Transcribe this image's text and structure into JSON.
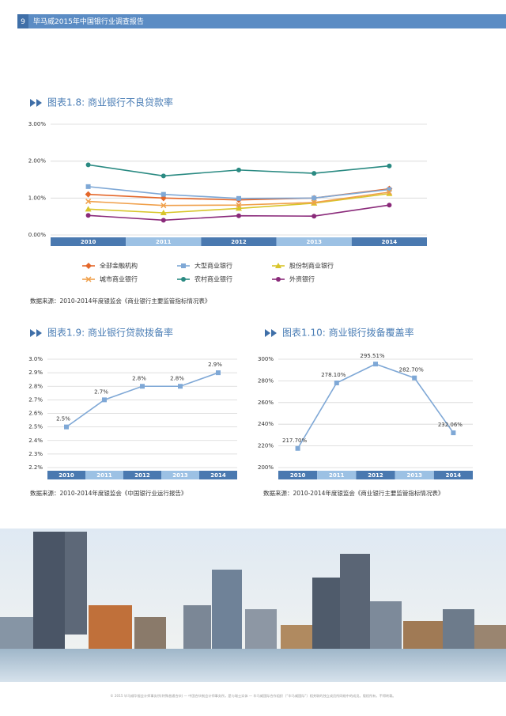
{
  "header": {
    "page_number": "9",
    "title": "毕马威2015年中国银行业调查报告"
  },
  "chart_data": [
    {
      "type": "line",
      "title": "图表1.8: 商业银行不良贷款率",
      "categories": [
        "2010",
        "2011",
        "2012",
        "2013",
        "2014"
      ],
      "ylim": [
        0,
        3
      ],
      "yticks": [
        {
          "value": 0,
          "label": "0.00%"
        },
        {
          "value": 1,
          "label": "1.00%"
        },
        {
          "value": 2,
          "label": "2.00%"
        },
        {
          "value": 3,
          "label": "3.00%"
        }
      ],
      "grid": true,
      "legend": "bottom",
      "series": [
        {
          "name": "全部金融机构",
          "color": "#e4672a",
          "marker": "diamond",
          "values": [
            1.1,
            1.0,
            0.95,
            1.0,
            1.25
          ]
        },
        {
          "name": "大型商业银行",
          "color": "#7fa8d6",
          "marker": "square",
          "values": [
            1.31,
            1.1,
            0.99,
            1.0,
            1.23
          ]
        },
        {
          "name": "股份制商业银行",
          "color": "#d8c52a",
          "marker": "triangle",
          "values": [
            0.7,
            0.6,
            0.72,
            0.86,
            1.12
          ]
        },
        {
          "name": "城市商业银行",
          "color": "#f0a04b",
          "marker": "cross",
          "values": [
            0.91,
            0.8,
            0.81,
            0.88,
            1.16
          ]
        },
        {
          "name": "农村商业银行",
          "color": "#2a8a82",
          "marker": "circle",
          "values": [
            1.9,
            1.6,
            1.76,
            1.67,
            1.87
          ]
        },
        {
          "name": "外资银行",
          "color": "#8a2a7a",
          "marker": "circle",
          "values": [
            0.53,
            0.4,
            0.52,
            0.51,
            0.81
          ]
        }
      ],
      "source": "数据来源：2010-2014年度银监会《商业银行主要监管指标情况表》"
    },
    {
      "type": "line",
      "title": "图表1.9: 商业银行贷款拨备率",
      "categories": [
        "2010",
        "2011",
        "2012",
        "2013",
        "2014"
      ],
      "ylim": [
        2.2,
        3.0
      ],
      "yticks": [
        {
          "value": 2.2,
          "label": "2.2%"
        },
        {
          "value": 2.3,
          "label": "2.3%"
        },
        {
          "value": 2.4,
          "label": "2.4%"
        },
        {
          "value": 2.5,
          "label": "2.5%"
        },
        {
          "value": 2.6,
          "label": "2.6%"
        },
        {
          "value": 2.7,
          "label": "2.7%"
        },
        {
          "value": 2.8,
          "label": "2.8%"
        },
        {
          "value": 2.9,
          "label": "2.9%"
        },
        {
          "value": 3.0,
          "label": "3.0%"
        }
      ],
      "grid": true,
      "color": "#7fa8d6",
      "values": [
        2.5,
        2.7,
        2.8,
        2.8,
        2.9
      ],
      "value_labels": [
        "2.5%",
        "2.7%",
        "2.8%",
        "2.8%",
        "2.9%"
      ],
      "source": "数据来源：2010-2014年度银监会《中国银行业运行报告》"
    },
    {
      "type": "line",
      "title": "图表1.10: 商业银行拨备覆盖率",
      "categories": [
        "2010",
        "2011",
        "2012",
        "2013",
        "2014"
      ],
      "ylim": [
        200,
        300
      ],
      "yticks": [
        {
          "value": 200,
          "label": "200%"
        },
        {
          "value": 220,
          "label": "220%"
        },
        {
          "value": 240,
          "label": "240%"
        },
        {
          "value": 260,
          "label": "260%"
        },
        {
          "value": 280,
          "label": "280%"
        },
        {
          "value": 300,
          "label": "300%"
        }
      ],
      "grid": true,
      "color": "#7fa8d6",
      "values": [
        217.7,
        278.1,
        295.51,
        282.7,
        232.06
      ],
      "value_labels": [
        "217.70%",
        "278.10%",
        "295.51%",
        "282.70%",
        "232.06%"
      ],
      "source": "数据来源：2010-2014年度银监会《商业银行主要监管指标情况表》"
    }
  ],
  "footer": "© 2015 毕马威华振会计师事务所(特殊普通合伙) — 中国合伙制会计师事务所，是与瑞士实体 — 毕马威国际合作组织（“毕马威国际”）相关联的独立成员所网络中的成员。版权所有，不得转载。"
}
